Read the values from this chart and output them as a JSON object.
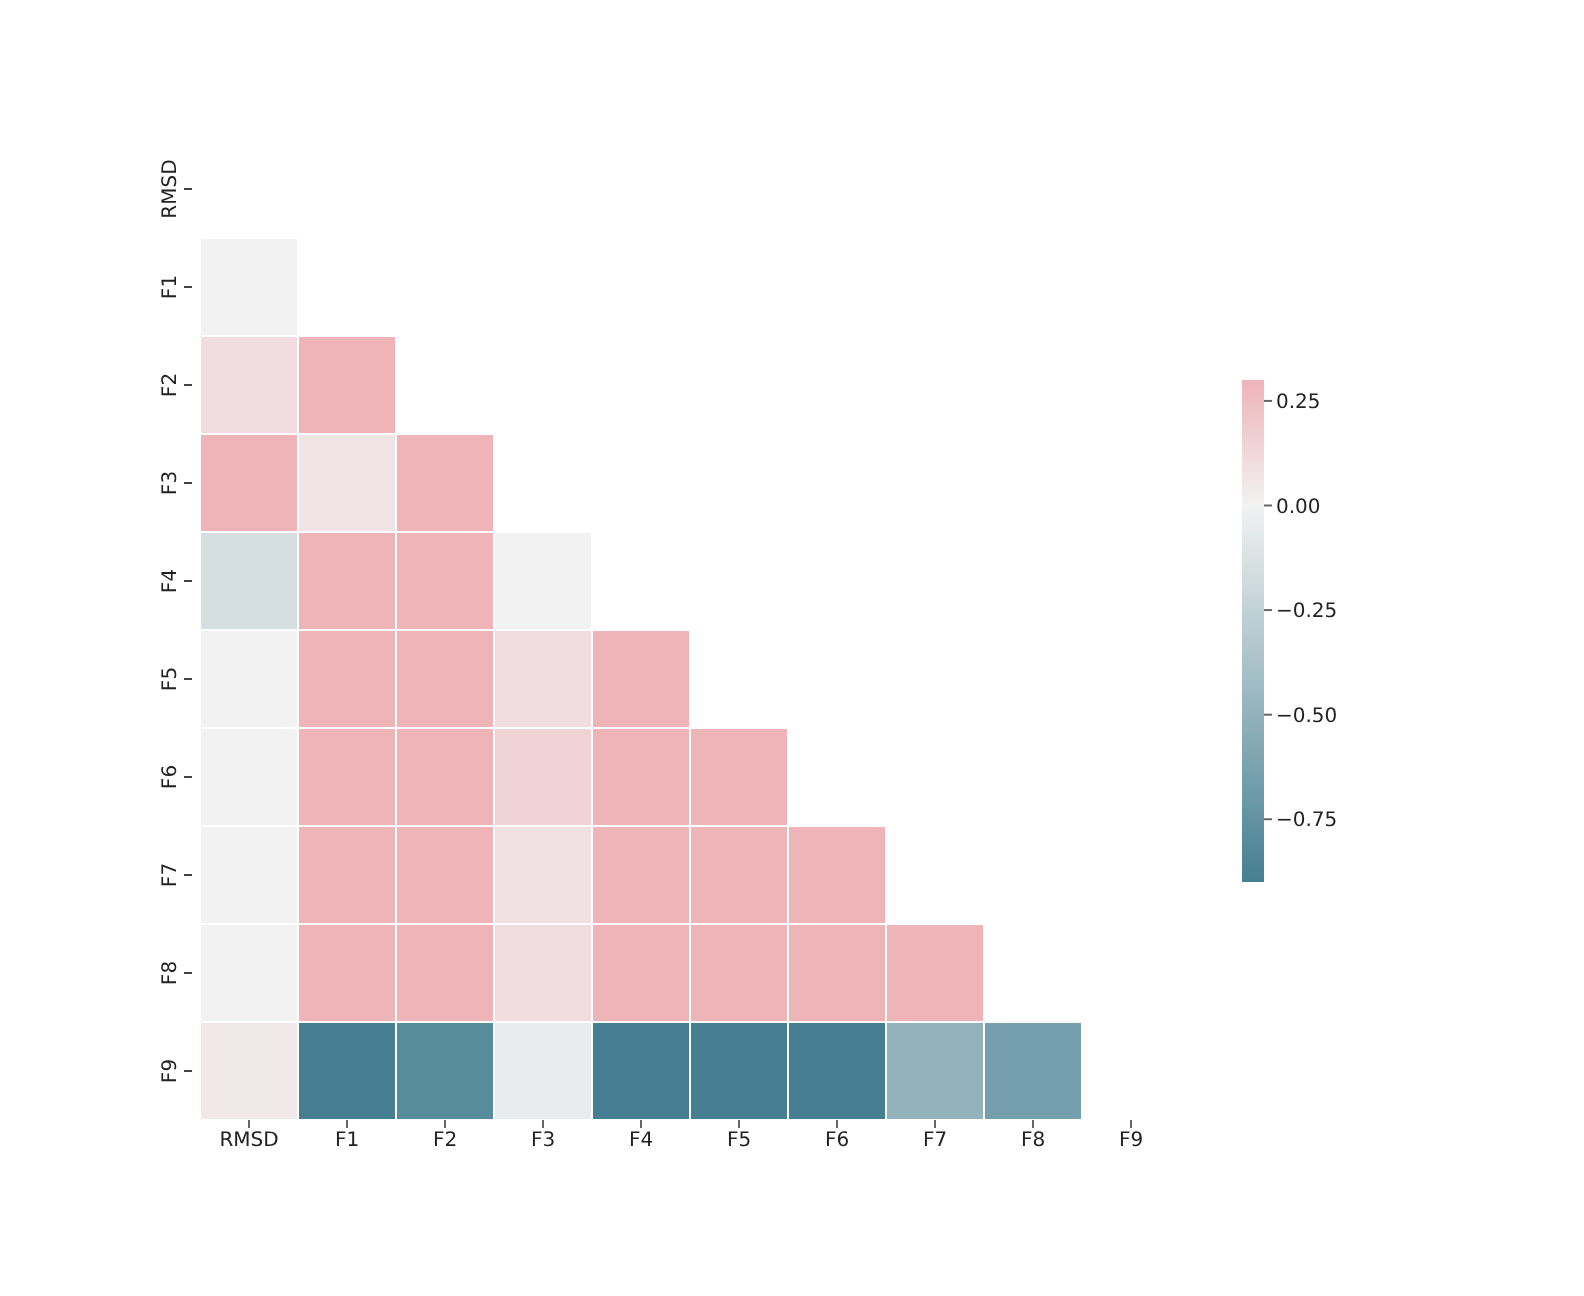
{
  "chart_data": {
    "type": "heatmap",
    "categories": [
      "RMSD",
      "F1",
      "F2",
      "F3",
      "F4",
      "F5",
      "F6",
      "F7",
      "F8",
      "F9"
    ],
    "y_categories": [
      "RMSD",
      "F1",
      "F2",
      "F3",
      "F4",
      "F5",
      "F6",
      "F7",
      "F8",
      "F9"
    ],
    "cells": [
      [
        null,
        null,
        null,
        null,
        null,
        null,
        null,
        null,
        null,
        null
      ],
      [
        0.0,
        null,
        null,
        null,
        null,
        null,
        null,
        null,
        null,
        null
      ],
      [
        0.1,
        0.3,
        null,
        null,
        null,
        null,
        null,
        null,
        null,
        null
      ],
      [
        0.3,
        0.07,
        0.3,
        null,
        null,
        null,
        null,
        null,
        null,
        null
      ],
      [
        -0.15,
        0.3,
        0.3,
        0.0,
        null,
        null,
        null,
        null,
        null,
        null
      ],
      [
        0.0,
        0.3,
        0.3,
        0.1,
        0.3,
        null,
        null,
        null,
        null,
        null
      ],
      [
        0.0,
        0.3,
        0.3,
        0.15,
        0.3,
        0.3,
        null,
        null,
        null,
        null
      ],
      [
        0.0,
        0.3,
        0.3,
        0.08,
        0.3,
        0.3,
        0.3,
        null,
        null,
        null
      ],
      [
        0.0,
        0.3,
        0.3,
        0.1,
        0.3,
        0.3,
        0.3,
        0.3,
        null,
        null
      ],
      [
        0.05,
        -0.9,
        -0.8,
        -0.05,
        -0.9,
        -0.9,
        -0.9,
        -0.5,
        -0.65,
        null
      ]
    ],
    "clim": [
      -0.9,
      0.3
    ],
    "cticks": [
      {
        "value": 0.25,
        "label": "0.25"
      },
      {
        "value": 0,
        "label": "0.00"
      },
      {
        "value": -0.25,
        "label": "−0.25"
      },
      {
        "value": -0.5,
        "label": "−0.50"
      },
      {
        "value": -0.75,
        "label": "−0.75"
      }
    ]
  }
}
